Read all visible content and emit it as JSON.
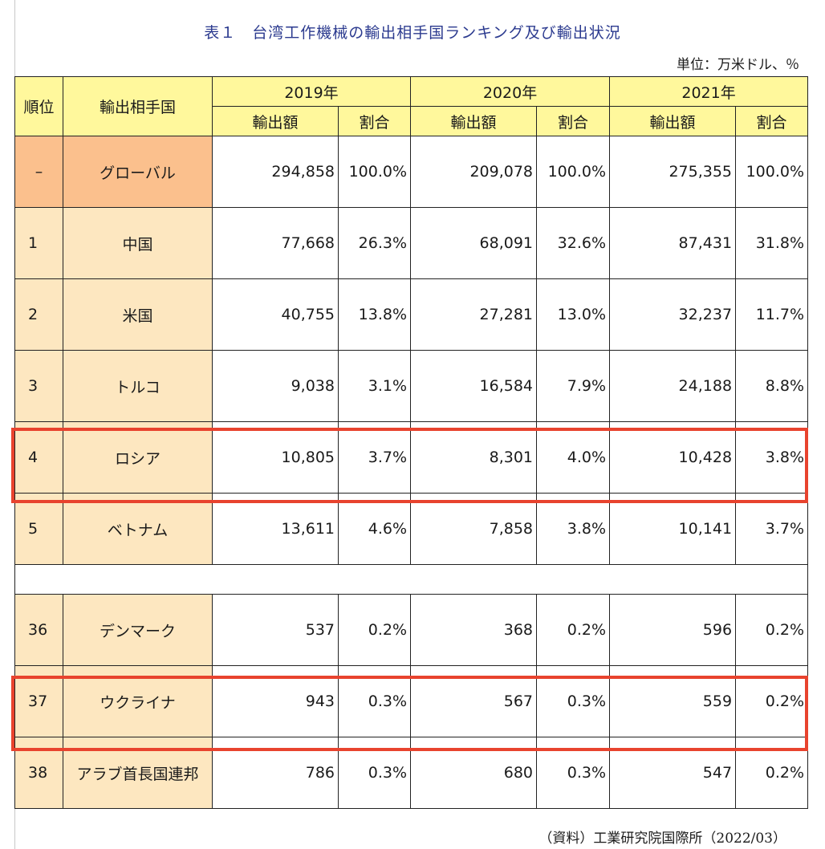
{
  "title": "表１　台湾工作機械の輸出相手国ランキング及び輸出状況",
  "unit": "単位：万米ドル、％",
  "source": "（資料）工業研究院国際所（2022/03）",
  "headers": {
    "rank": "順位",
    "country": "輸出相手国",
    "years": [
      "2019年",
      "2020年",
      "2021年"
    ],
    "amount": "輸出額",
    "share": "割合"
  },
  "rows": [
    {
      "rank": "–",
      "country": "グローバル",
      "v2019": "294,858",
      "s2019": "100.0%",
      "v2020": "209,078",
      "s2020": "100.0%",
      "v2021": "275,355",
      "s2021": "100.0%"
    },
    {
      "rank": "1",
      "country": "中国",
      "v2019": "77,668",
      "s2019": "26.3%",
      "v2020": "68,091",
      "s2020": "32.6%",
      "v2021": "87,431",
      "s2021": "31.8%"
    },
    {
      "rank": "2",
      "country": "米国",
      "v2019": "40,755",
      "s2019": "13.8%",
      "v2020": "27,281",
      "s2020": "13.0%",
      "v2021": "32,237",
      "s2021": "11.7%"
    },
    {
      "rank": "3",
      "country": "トルコ",
      "v2019": "9,038",
      "s2019": "3.1%",
      "v2020": "16,584",
      "s2020": "7.9%",
      "v2021": "24,188",
      "s2021": "8.8%"
    },
    {
      "rank": "4",
      "country": "ロシア",
      "v2019": "10,805",
      "s2019": "3.7%",
      "v2020": "8,301",
      "s2020": "4.0%",
      "v2021": "10,428",
      "s2021": "3.8%"
    },
    {
      "rank": "5",
      "country": "ベトナム",
      "v2019": "13,611",
      "s2019": "4.6%",
      "v2020": "7,858",
      "s2020": "3.8%",
      "v2021": "10,141",
      "s2021": "3.7%"
    },
    {
      "rank": "36",
      "country": "デンマーク",
      "v2019": "537",
      "s2019": "0.2%",
      "v2020": "368",
      "s2020": "0.2%",
      "v2021": "596",
      "s2021": "0.2%"
    },
    {
      "rank": "37",
      "country": "ウクライナ",
      "v2019": "943",
      "s2019": "0.3%",
      "v2020": "567",
      "s2020": "0.3%",
      "v2021": "559",
      "s2021": "0.2%"
    },
    {
      "rank": "38",
      "country": "アラブ首長国連邦",
      "v2019": "786",
      "s2019": "0.3%",
      "v2020": "680",
      "s2020": "0.3%",
      "v2021": "547",
      "s2021": "0.2%"
    }
  ],
  "highlight_color": "#e8432e",
  "header_color": "#fff89c",
  "country_color": "#fde7c0",
  "global_color": "#fbc08d"
}
